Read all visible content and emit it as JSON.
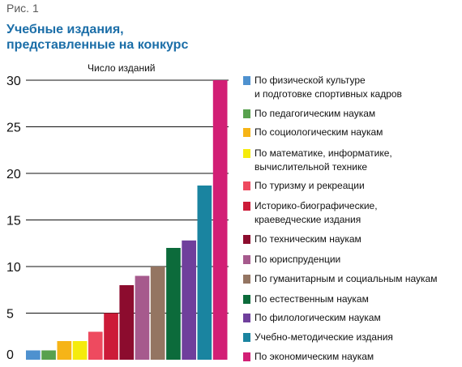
{
  "figure": {
    "label": "Рис. 1",
    "title": "Учебные издания,\nпредставленные на конкурс"
  },
  "chart_data": {
    "type": "bar",
    "title": "Учебные издания, представленные на конкурс",
    "ylabel": "Число изданий",
    "xlabel": "",
    "ylim": [
      0,
      30
    ],
    "yticks": [
      0,
      5,
      10,
      15,
      20,
      25,
      30
    ],
    "grid": true,
    "legend_position": "right",
    "series": [
      {
        "name": "По физической культуре\nи подготовке спортивных кадров",
        "value": 1,
        "color": "#4e91cf"
      },
      {
        "name": "По педагогическим наукам",
        "value": 1,
        "color": "#58a14e"
      },
      {
        "name": "По социологическим наукам",
        "value": 2,
        "color": "#f6b417"
      },
      {
        "name": "По математике, информатике,\nвычислительной технике",
        "value": 2,
        "color": "#f5eb0c"
      },
      {
        "name": "По туризму и рекреации",
        "value": 3,
        "color": "#ee4a5f"
      },
      {
        "name": "Историко-биографические,\nкраеведческие издания",
        "value": 5,
        "color": "#cc1b38"
      },
      {
        "name": "По техническим наукам",
        "value": 8,
        "color": "#8c0c2e"
      },
      {
        "name": "По юриспруденции",
        "value": 9,
        "color": "#a65a8d"
      },
      {
        "name": "По гуманитарным и социальным наукам",
        "value": 10,
        "color": "#947562"
      },
      {
        "name": "По естественным наукам",
        "value": 12,
        "color": "#0c6b3b"
      },
      {
        "name": "По филологическим наукам",
        "value": 12.8,
        "color": "#6f3f9c"
      },
      {
        "name": "Учебно-методические издания",
        "value": 18.7,
        "color": "#1a84a0"
      },
      {
        "name": "По экономическим наукам",
        "value": 30,
        "color": "#d21f75"
      }
    ]
  }
}
